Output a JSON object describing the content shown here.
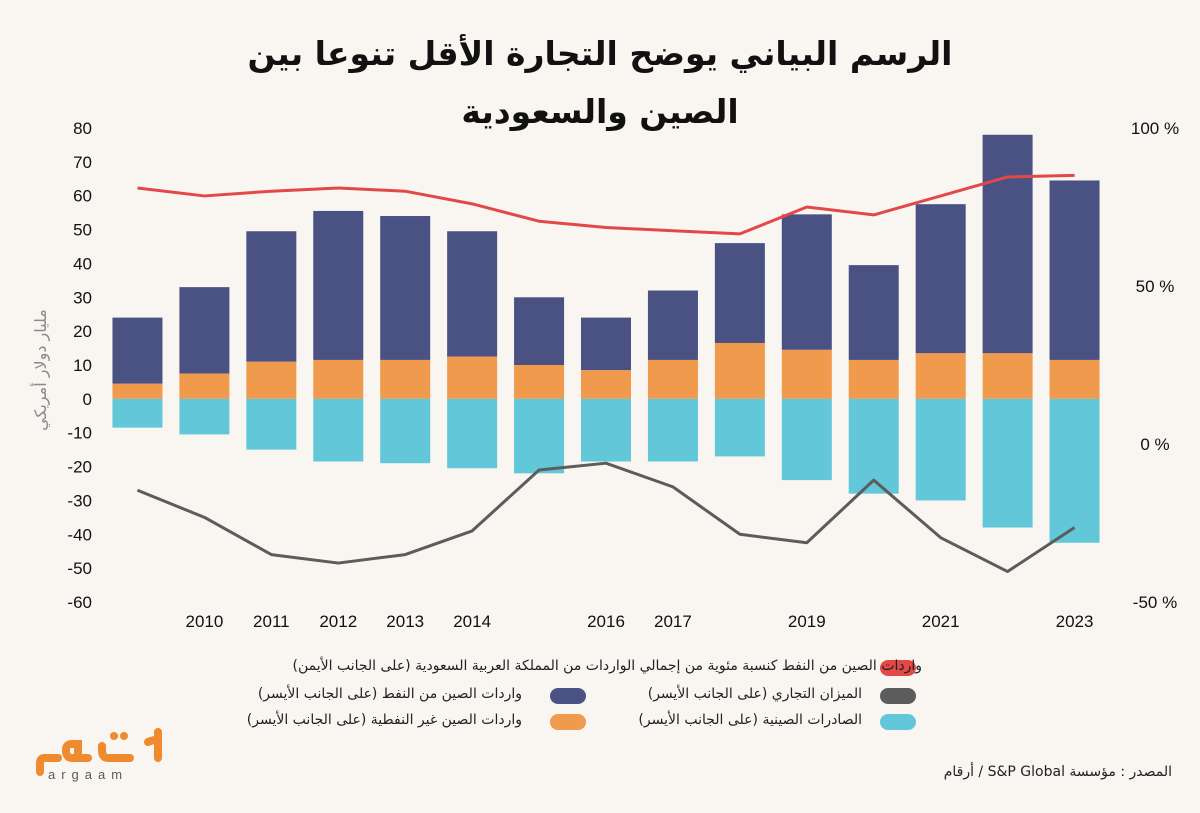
{
  "title_line1": "الرسم البياني يوضح التجارة الأقل تنوعا بين",
  "title_line2": "الصين والسعودية",
  "source": "المصدر : مؤسسة S&P Global / أرقام",
  "logo": {
    "arabic": "أرقام",
    "latin": "argaam"
  },
  "chart_data": {
    "type": "bar",
    "categories": [
      "",
      "2010",
      "2011",
      "2012",
      "2013",
      "2014",
      "",
      "2016",
      "2017",
      "",
      "2019",
      "",
      "2021",
      "",
      "2023"
    ],
    "ylabel": "مليار دولار أمريكي",
    "ylim": [
      -60,
      80
    ],
    "yticks": [
      80,
      70,
      60,
      50,
      40,
      30,
      20,
      10,
      0,
      -10,
      -20,
      -30,
      -40,
      -50,
      -60
    ],
    "y2lim": [
      -50,
      100
    ],
    "y2ticks": [
      {
        "value": 100,
        "label": "100 %"
      },
      {
        "value": 50,
        "label": "50 %"
      },
      {
        "value": 0,
        "label": "0 %"
      },
      {
        "value": -50,
        "label": "-50 %"
      }
    ],
    "colors": {
      "oil": "#4a5283",
      "nonoil": "#ef9a4c",
      "exports": "#62c7d8",
      "balance": "#5c5c5c",
      "share": "#e34848"
    },
    "series": [
      {
        "key": "nonoil",
        "name": "واردات الصين غير النفطية (على الجانب الأيسر)",
        "type": "bar",
        "values": [
          4.5,
          7.5,
          11,
          11.5,
          11.5,
          12.5,
          10,
          8.5,
          11.5,
          16.5,
          14.5,
          11.5,
          13.5,
          13.5,
          11.5
        ]
      },
      {
        "key": "oil",
        "name": "واردات الصين من النفط (على الجانب الأيسر)",
        "type": "bar",
        "values": [
          19.5,
          25.5,
          38.5,
          44,
          42.5,
          37,
          20,
          15.5,
          20.5,
          29.5,
          40,
          28,
          44,
          64.5,
          53
        ]
      },
      {
        "key": "exports",
        "name": "الصادرات الصينية (على الجانب الأيسر)",
        "type": "bar",
        "values": [
          -8.5,
          -10.5,
          -15,
          -18.5,
          -19,
          -20.5,
          -22,
          -18.5,
          -18.5,
          -17,
          -24,
          -28,
          -30,
          -38,
          -42.5
        ]
      },
      {
        "key": "balance",
        "name": "الميزان التجاري (على الجانب الأيسر)",
        "type": "line",
        "values": [
          -27,
          -35,
          -46,
          -48.5,
          -46,
          -39,
          -21,
          -19,
          -26,
          -40,
          -42.5,
          -24,
          -41,
          -51,
          -38
        ]
      },
      {
        "key": "share",
        "name": "واردات الصين من النفط كنسبة مئوية من إجمالي الواردات من المملكة العربية السعودية (على الجانب الأيمن)",
        "type": "line",
        "axis": "right",
        "values": [
          81,
          78.5,
          80,
          81,
          80,
          76,
          70.5,
          68.5,
          67.5,
          66.5,
          75,
          72.5,
          78.5,
          84.5,
          85
        ]
      }
    ]
  }
}
